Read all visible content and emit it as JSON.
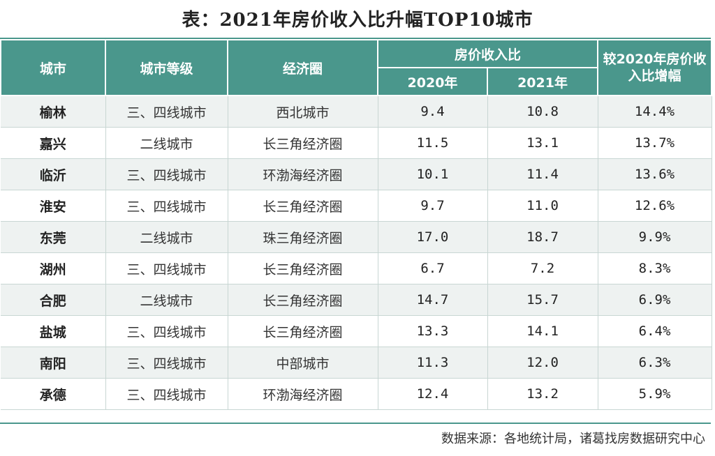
{
  "title": "表：2021年房价收入比升幅TOP10城市",
  "headers": {
    "city": "城市",
    "level": "城市等级",
    "circle": "经济圈",
    "ratio_group": "房价收入比",
    "y2020": "2020年",
    "y2021": "2021年",
    "change": "较2020年房价收入比增幅"
  },
  "rows": [
    {
      "city": "榆林",
      "level": "三、四线城市",
      "circle": "西北城市",
      "y2020": "9.4",
      "y2021": "10.8",
      "change": "14.4%"
    },
    {
      "city": "嘉兴",
      "level": "二线城市",
      "circle": "长三角经济圈",
      "y2020": "11.5",
      "y2021": "13.1",
      "change": "13.7%"
    },
    {
      "city": "临沂",
      "level": "三、四线城市",
      "circle": "环渤海经济圈",
      "y2020": "10.1",
      "y2021": "11.4",
      "change": "13.6%"
    },
    {
      "city": "淮安",
      "level": "三、四线城市",
      "circle": "长三角经济圈",
      "y2020": "9.7",
      "y2021": "11.0",
      "change": "12.6%"
    },
    {
      "city": "东莞",
      "level": "二线城市",
      "circle": "珠三角经济圈",
      "y2020": "17.0",
      "y2021": "18.7",
      "change": "9.9%"
    },
    {
      "city": "湖州",
      "level": "三、四线城市",
      "circle": "长三角经济圈",
      "y2020": "6.7",
      "y2021": "7.2",
      "change": "8.3%"
    },
    {
      "city": "合肥",
      "level": "二线城市",
      "circle": "长三角经济圈",
      "y2020": "14.7",
      "y2021": "15.7",
      "change": "6.9%"
    },
    {
      "city": "盐城",
      "level": "三、四线城市",
      "circle": "长三角经济圈",
      "y2020": "13.3",
      "y2021": "14.1",
      "change": "6.4%"
    },
    {
      "city": "南阳",
      "level": "三、四线城市",
      "circle": "中部城市",
      "y2020": "11.3",
      "y2021": "12.0",
      "change": "6.3%"
    },
    {
      "city": "承德",
      "level": "三、四线城市",
      "circle": "环渤海经济圈",
      "y2020": "12.4",
      "y2021": "13.2",
      "change": "5.9%"
    }
  ],
  "source": "数据来源：各地统计局，诸葛找房数据研究中心",
  "colors": {
    "header_bg": "#4a978c",
    "stripe": "#eef2f1"
  }
}
